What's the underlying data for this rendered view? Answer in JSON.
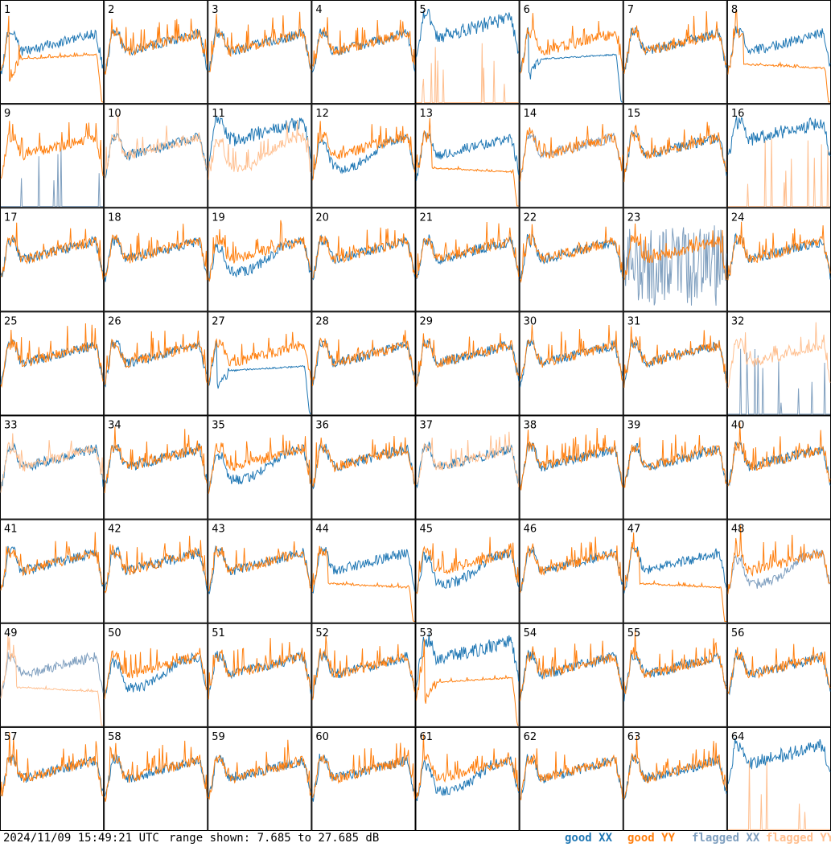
{
  "chart_data": {
    "type": "line",
    "title": "",
    "timestamp": "2024/11/09 15:49:21 UTC",
    "range_text": "range shown: 7.685 to 27.685 dB",
    "ylim": [
      7.685,
      27.685
    ],
    "y_unit": "dB",
    "grid": {
      "rows": 8,
      "cols": 8
    },
    "legend": [
      {
        "label": "good XX",
        "color": "#1f77b4"
      },
      {
        "label": "good YY",
        "color": "#ff7f0e"
      },
      {
        "label": "flagged XX",
        "color": "#7f9fbf"
      },
      {
        "label": "flagged YY",
        "color": "#ffbf8f"
      }
    ],
    "legend_position": "bottom-right",
    "panels": [
      {
        "id": "1",
        "xx": "good",
        "yy": "good",
        "xx_style": "normal",
        "yy_style": "dip_flat"
      },
      {
        "id": "2",
        "xx": "good",
        "yy": "good",
        "xx_style": "normal",
        "yy_style": "normal"
      },
      {
        "id": "3",
        "xx": "good",
        "yy": "good",
        "xx_style": "normal",
        "yy_style": "normal"
      },
      {
        "id": "4",
        "xx": "good",
        "yy": "good",
        "xx_style": "normal",
        "yy_style": "normal"
      },
      {
        "id": "5",
        "xx": "good",
        "yy": "flagged",
        "xx_style": "high",
        "yy_style": "spikes"
      },
      {
        "id": "6",
        "xx": "good",
        "yy": "good",
        "xx_style": "dip_flat",
        "yy_style": "normal"
      },
      {
        "id": "7",
        "xx": "good",
        "yy": "good",
        "xx_style": "normal",
        "yy_style": "normal"
      },
      {
        "id": "8",
        "xx": "good",
        "yy": "good",
        "xx_style": "normal",
        "yy_style": "flat"
      },
      {
        "id": "9",
        "xx": "flagged",
        "yy": "good",
        "xx_style": "spikes",
        "yy_style": "normal"
      },
      {
        "id": "10",
        "xx": "good",
        "yy": "flagged",
        "xx_style": "normal",
        "yy_style": "normal"
      },
      {
        "id": "11",
        "xx": "good",
        "yy": "flagged",
        "xx_style": "high",
        "yy_style": "low"
      },
      {
        "id": "12",
        "xx": "good",
        "yy": "good",
        "xx_style": "low",
        "yy_style": "normal"
      },
      {
        "id": "13",
        "xx": "good",
        "yy": "good",
        "xx_style": "normal",
        "yy_style": "flat"
      },
      {
        "id": "14",
        "xx": "flagged",
        "yy": "good",
        "xx_style": "normal",
        "yy_style": "normal"
      },
      {
        "id": "15",
        "xx": "good",
        "yy": "good",
        "xx_style": "normal",
        "yy_style": "normal"
      },
      {
        "id": "16",
        "xx": "good",
        "yy": "flagged",
        "xx_style": "high",
        "yy_style": "spikes"
      },
      {
        "id": "17",
        "xx": "good",
        "yy": "good",
        "xx_style": "normal",
        "yy_style": "normal"
      },
      {
        "id": "18",
        "xx": "good",
        "yy": "good",
        "xx_style": "normal",
        "yy_style": "normal"
      },
      {
        "id": "19",
        "xx": "good",
        "yy": "good",
        "xx_style": "low",
        "yy_style": "normal"
      },
      {
        "id": "20",
        "xx": "good",
        "yy": "good",
        "xx_style": "normal",
        "yy_style": "normal"
      },
      {
        "id": "21",
        "xx": "good",
        "yy": "good",
        "xx_style": "normal",
        "yy_style": "normal"
      },
      {
        "id": "22",
        "xx": "good",
        "yy": "good",
        "xx_style": "normal",
        "yy_style": "normal"
      },
      {
        "id": "23",
        "xx": "flagged",
        "yy": "good",
        "xx_style": "noisy",
        "yy_style": "normal"
      },
      {
        "id": "24",
        "xx": "good",
        "yy": "good",
        "xx_style": "normal",
        "yy_style": "normal"
      },
      {
        "id": "25",
        "xx": "good",
        "yy": "good",
        "xx_style": "spikes",
        "yy_style": "normal"
      },
      {
        "id": "26",
        "xx": "good",
        "yy": "good",
        "xx_style": "normal",
        "yy_style": "normal"
      },
      {
        "id": "27",
        "xx": "good",
        "yy": "good",
        "xx_style": "dip_flat",
        "yy_style": "normal"
      },
      {
        "id": "28",
        "xx": "good",
        "yy": "good",
        "xx_style": "normal",
        "yy_style": "normal"
      },
      {
        "id": "29",
        "xx": "good",
        "yy": "good",
        "xx_style": "normal",
        "yy_style": "normal"
      },
      {
        "id": "30",
        "xx": "good",
        "yy": "good",
        "xx_style": "normal",
        "yy_style": "normal"
      },
      {
        "id": "31",
        "xx": "good",
        "yy": "good",
        "xx_style": "normal",
        "yy_style": "normal"
      },
      {
        "id": "32",
        "xx": "flagged",
        "yy": "flagged",
        "xx_style": "spikes",
        "yy_style": "normal"
      },
      {
        "id": "33",
        "xx": "good",
        "yy": "flagged",
        "xx_style": "normal",
        "yy_style": "normal"
      },
      {
        "id": "34",
        "xx": "good",
        "yy": "good",
        "xx_style": "normal",
        "yy_style": "spikes"
      },
      {
        "id": "35",
        "xx": "good",
        "yy": "good",
        "xx_style": "low",
        "yy_style": "normal"
      },
      {
        "id": "36",
        "xx": "good",
        "yy": "good",
        "xx_style": "normal",
        "yy_style": "normal"
      },
      {
        "id": "37",
        "xx": "good",
        "yy": "flagged",
        "xx_style": "normal",
        "yy_style": "normal"
      },
      {
        "id": "38",
        "xx": "good",
        "yy": "good",
        "xx_style": "normal",
        "yy_style": "normal"
      },
      {
        "id": "39",
        "xx": "good",
        "yy": "good",
        "xx_style": "spikes",
        "yy_style": "normal"
      },
      {
        "id": "40",
        "xx": "good",
        "yy": "good",
        "xx_style": "normal",
        "yy_style": "normal"
      },
      {
        "id": "41",
        "xx": "good",
        "yy": "good",
        "xx_style": "normal",
        "yy_style": "normal"
      },
      {
        "id": "42",
        "xx": "good",
        "yy": "good",
        "xx_style": "normal",
        "yy_style": "normal"
      },
      {
        "id": "43",
        "xx": "good",
        "yy": "good",
        "xx_style": "normal",
        "yy_style": "normal"
      },
      {
        "id": "44",
        "xx": "good",
        "yy": "good",
        "xx_style": "normal",
        "yy_style": "flat"
      },
      {
        "id": "45",
        "xx": "good",
        "yy": "good",
        "xx_style": "low",
        "yy_style": "normal"
      },
      {
        "id": "46",
        "xx": "good",
        "yy": "good",
        "xx_style": "normal",
        "yy_style": "normal"
      },
      {
        "id": "47",
        "xx": "good",
        "yy": "good",
        "xx_style": "normal",
        "yy_style": "flat"
      },
      {
        "id": "48",
        "xx": "flagged",
        "yy": "good",
        "xx_style": "low",
        "yy_style": "normal"
      },
      {
        "id": "49",
        "xx": "flagged",
        "yy": "flagged",
        "xx_style": "normal",
        "yy_style": "flat"
      },
      {
        "id": "50",
        "xx": "good",
        "yy": "good",
        "xx_style": "low",
        "yy_style": "normal"
      },
      {
        "id": "51",
        "xx": "good",
        "yy": "good",
        "xx_style": "normal",
        "yy_style": "normal"
      },
      {
        "id": "52",
        "xx": "good",
        "yy": "good",
        "xx_style": "normal",
        "yy_style": "normal"
      },
      {
        "id": "53",
        "xx": "good",
        "yy": "good",
        "xx_style": "high",
        "yy_style": "dip_flat"
      },
      {
        "id": "54",
        "xx": "good",
        "yy": "good",
        "xx_style": "normal",
        "yy_style": "normal"
      },
      {
        "id": "55",
        "xx": "good",
        "yy": "good",
        "xx_style": "spikes",
        "yy_style": "normal"
      },
      {
        "id": "56",
        "xx": "good",
        "yy": "good",
        "xx_style": "normal",
        "yy_style": "normal"
      },
      {
        "id": "57",
        "xx": "good",
        "yy": "good",
        "xx_style": "normal",
        "yy_style": "normal"
      },
      {
        "id": "58",
        "xx": "good",
        "yy": "good",
        "xx_style": "normal",
        "yy_style": "normal"
      },
      {
        "id": "59",
        "xx": "good",
        "yy": "good",
        "xx_style": "normal",
        "yy_style": "normal"
      },
      {
        "id": "60",
        "xx": "good",
        "yy": "good",
        "xx_style": "normal",
        "yy_style": "normal"
      },
      {
        "id": "61",
        "xx": "good",
        "yy": "good",
        "xx_style": "low",
        "yy_style": "normal"
      },
      {
        "id": "62",
        "xx": "good",
        "yy": "good",
        "xx_style": "normal",
        "yy_style": "normal"
      },
      {
        "id": "63",
        "xx": "good",
        "yy": "good",
        "xx_style": "normal",
        "yy_style": "normal"
      },
      {
        "id": "64",
        "xx": "good",
        "yy": "flagged",
        "xx_style": "high",
        "yy_style": "spikes"
      }
    ]
  }
}
